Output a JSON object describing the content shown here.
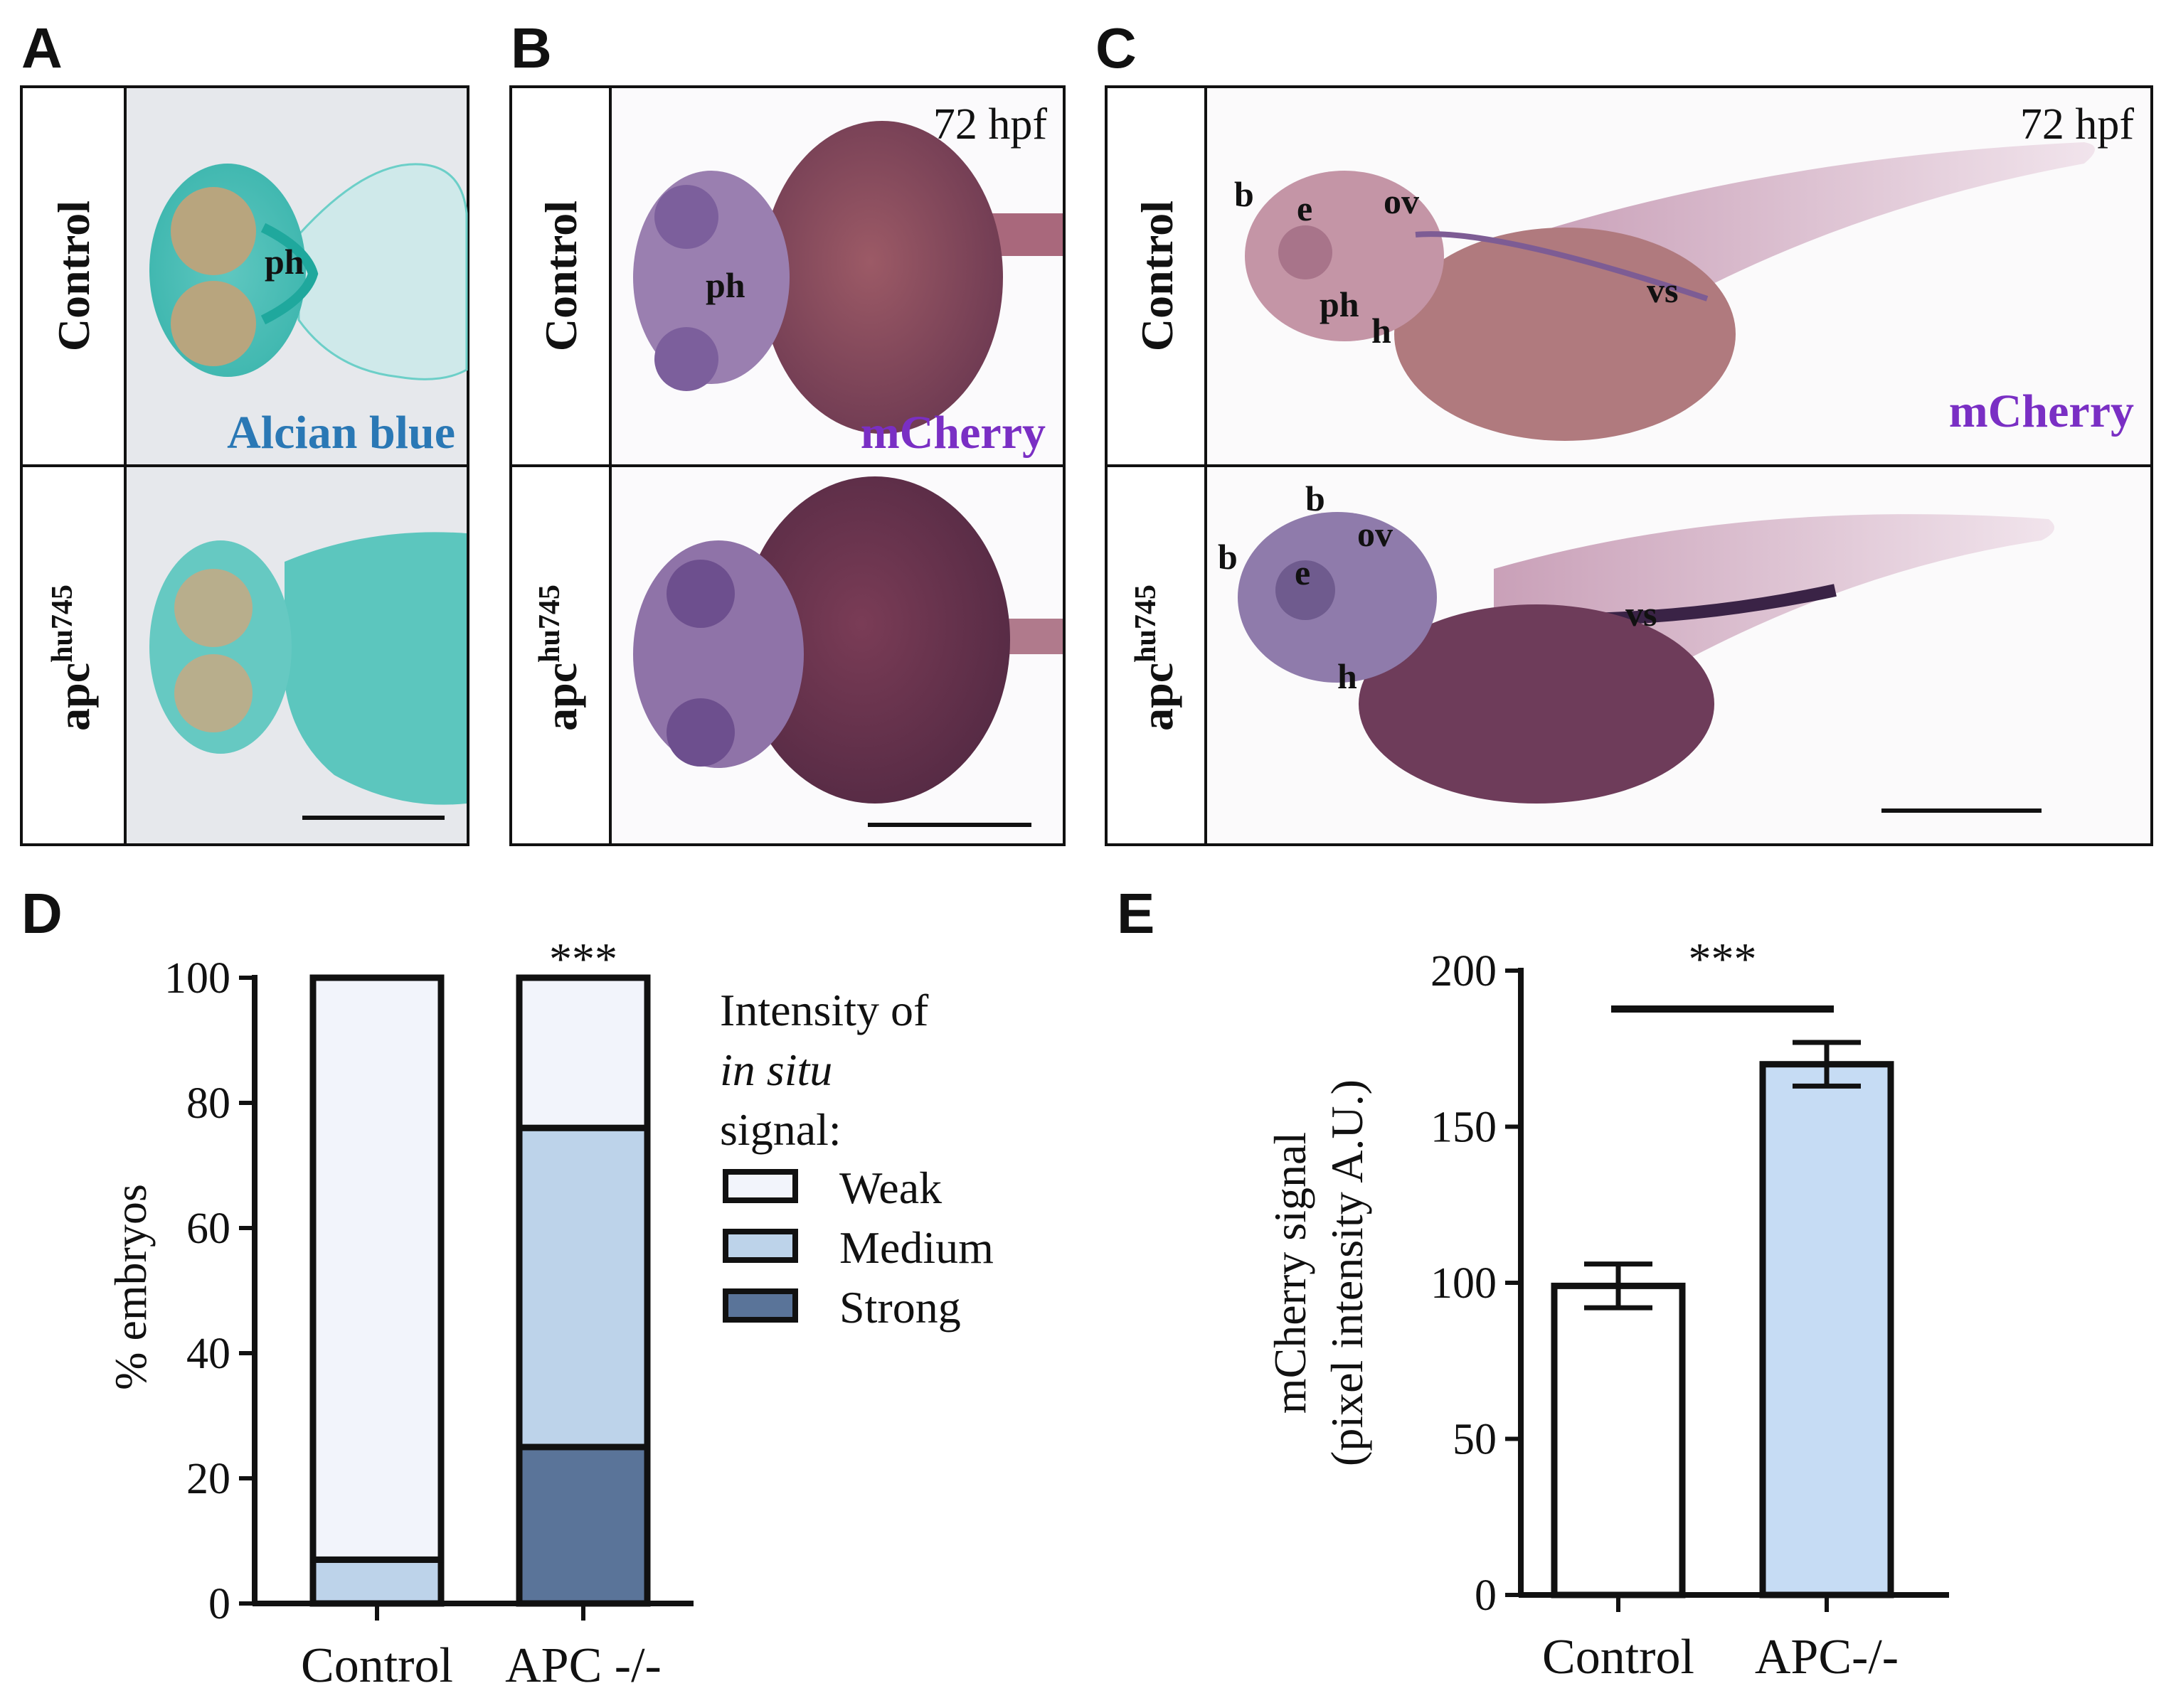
{
  "panels": {
    "A": {
      "letter": "A",
      "rows": [
        "Control",
        "apc"
      ],
      "row2_sup": "hu745",
      "stain": "Alcian blue",
      "stain_color": "#2a78b5",
      "labels": [
        "ph"
      ]
    },
    "B": {
      "letter": "B",
      "rows": [
        "Control",
        "apc"
      ],
      "row2_sup": "hu745",
      "time": "72 hpf",
      "stain": "mCherry",
      "stain_color": "#7a2fc4",
      "labels": [
        "ph"
      ]
    },
    "C": {
      "letter": "C",
      "rows": [
        "Control",
        "apc"
      ],
      "row2_sup": "hu745",
      "time": "72 hpf",
      "stain": "mCherry",
      "stain_color": "#7a2fc4",
      "labels_top": [
        "b",
        "e",
        "ov",
        "ph",
        "h",
        "vs"
      ],
      "labels_bottom": [
        "b",
        "b",
        "e",
        "ov",
        "h",
        "vs"
      ]
    },
    "D": {
      "letter": "D"
    },
    "E": {
      "letter": "E"
    }
  },
  "chart_data": [
    {
      "panel": "D",
      "type": "bar",
      "stacked": true,
      "categories": [
        "Control",
        "APC -/-"
      ],
      "series": [
        {
          "name": "Strong",
          "values": [
            0,
            25
          ],
          "color": "#5a7499"
        },
        {
          "name": "Medium",
          "values": [
            7,
            51
          ],
          "color": "#bdd3ea"
        },
        {
          "name": "Weak",
          "values": [
            93,
            24
          ],
          "color": "#f2f4fb"
        }
      ],
      "ylabel": "% embryos",
      "ylim": [
        0,
        100
      ],
      "yticks": [
        "0",
        "20",
        "40",
        "60",
        "80",
        "100"
      ],
      "legend_title": [
        "Intensity of",
        "in situ",
        "signal:"
      ],
      "legend_entries": [
        "Weak",
        "Medium",
        "Strong"
      ],
      "annotation": "***",
      "legend_position": "right"
    },
    {
      "panel": "E",
      "type": "bar",
      "categories": [
        "Control",
        "APC-/-"
      ],
      "values": [
        99,
        170
      ],
      "errors": [
        7,
        7
      ],
      "colors": [
        "#ffffff",
        "#c6dcf4"
      ],
      "ylabel": "mCherry signal",
      "ylabel2": "(pixel intensity A.U.)",
      "ylim": [
        0,
        200
      ],
      "yticks": [
        "0",
        "50",
        "100",
        "150",
        "200"
      ],
      "annotation": "***"
    }
  ]
}
